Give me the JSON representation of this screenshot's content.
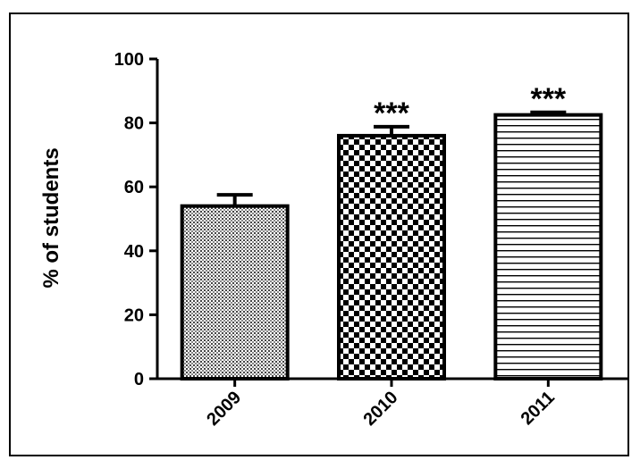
{
  "chart_data": {
    "type": "bar",
    "categories": [
      "2009",
      "2010",
      "2011"
    ],
    "values": [
      54,
      76,
      82.5
    ],
    "error_upper": [
      3.5,
      2.8,
      0.8
    ],
    "annotations": [
      "",
      "***",
      "***"
    ],
    "fill_patterns": [
      "fine-dots",
      "checkerboard",
      "horizontal-stripes"
    ],
    "title": "",
    "xlabel": "",
    "ylabel": "% of  students",
    "ylim": [
      0,
      100
    ],
    "yticks": [
      "0",
      "20",
      "40",
      "60",
      "80",
      "100"
    ],
    "grid": false,
    "legend": "none"
  },
  "colors": {
    "bar_stroke": "#000000",
    "pattern_ink": "#000000",
    "background": "#ffffff"
  }
}
